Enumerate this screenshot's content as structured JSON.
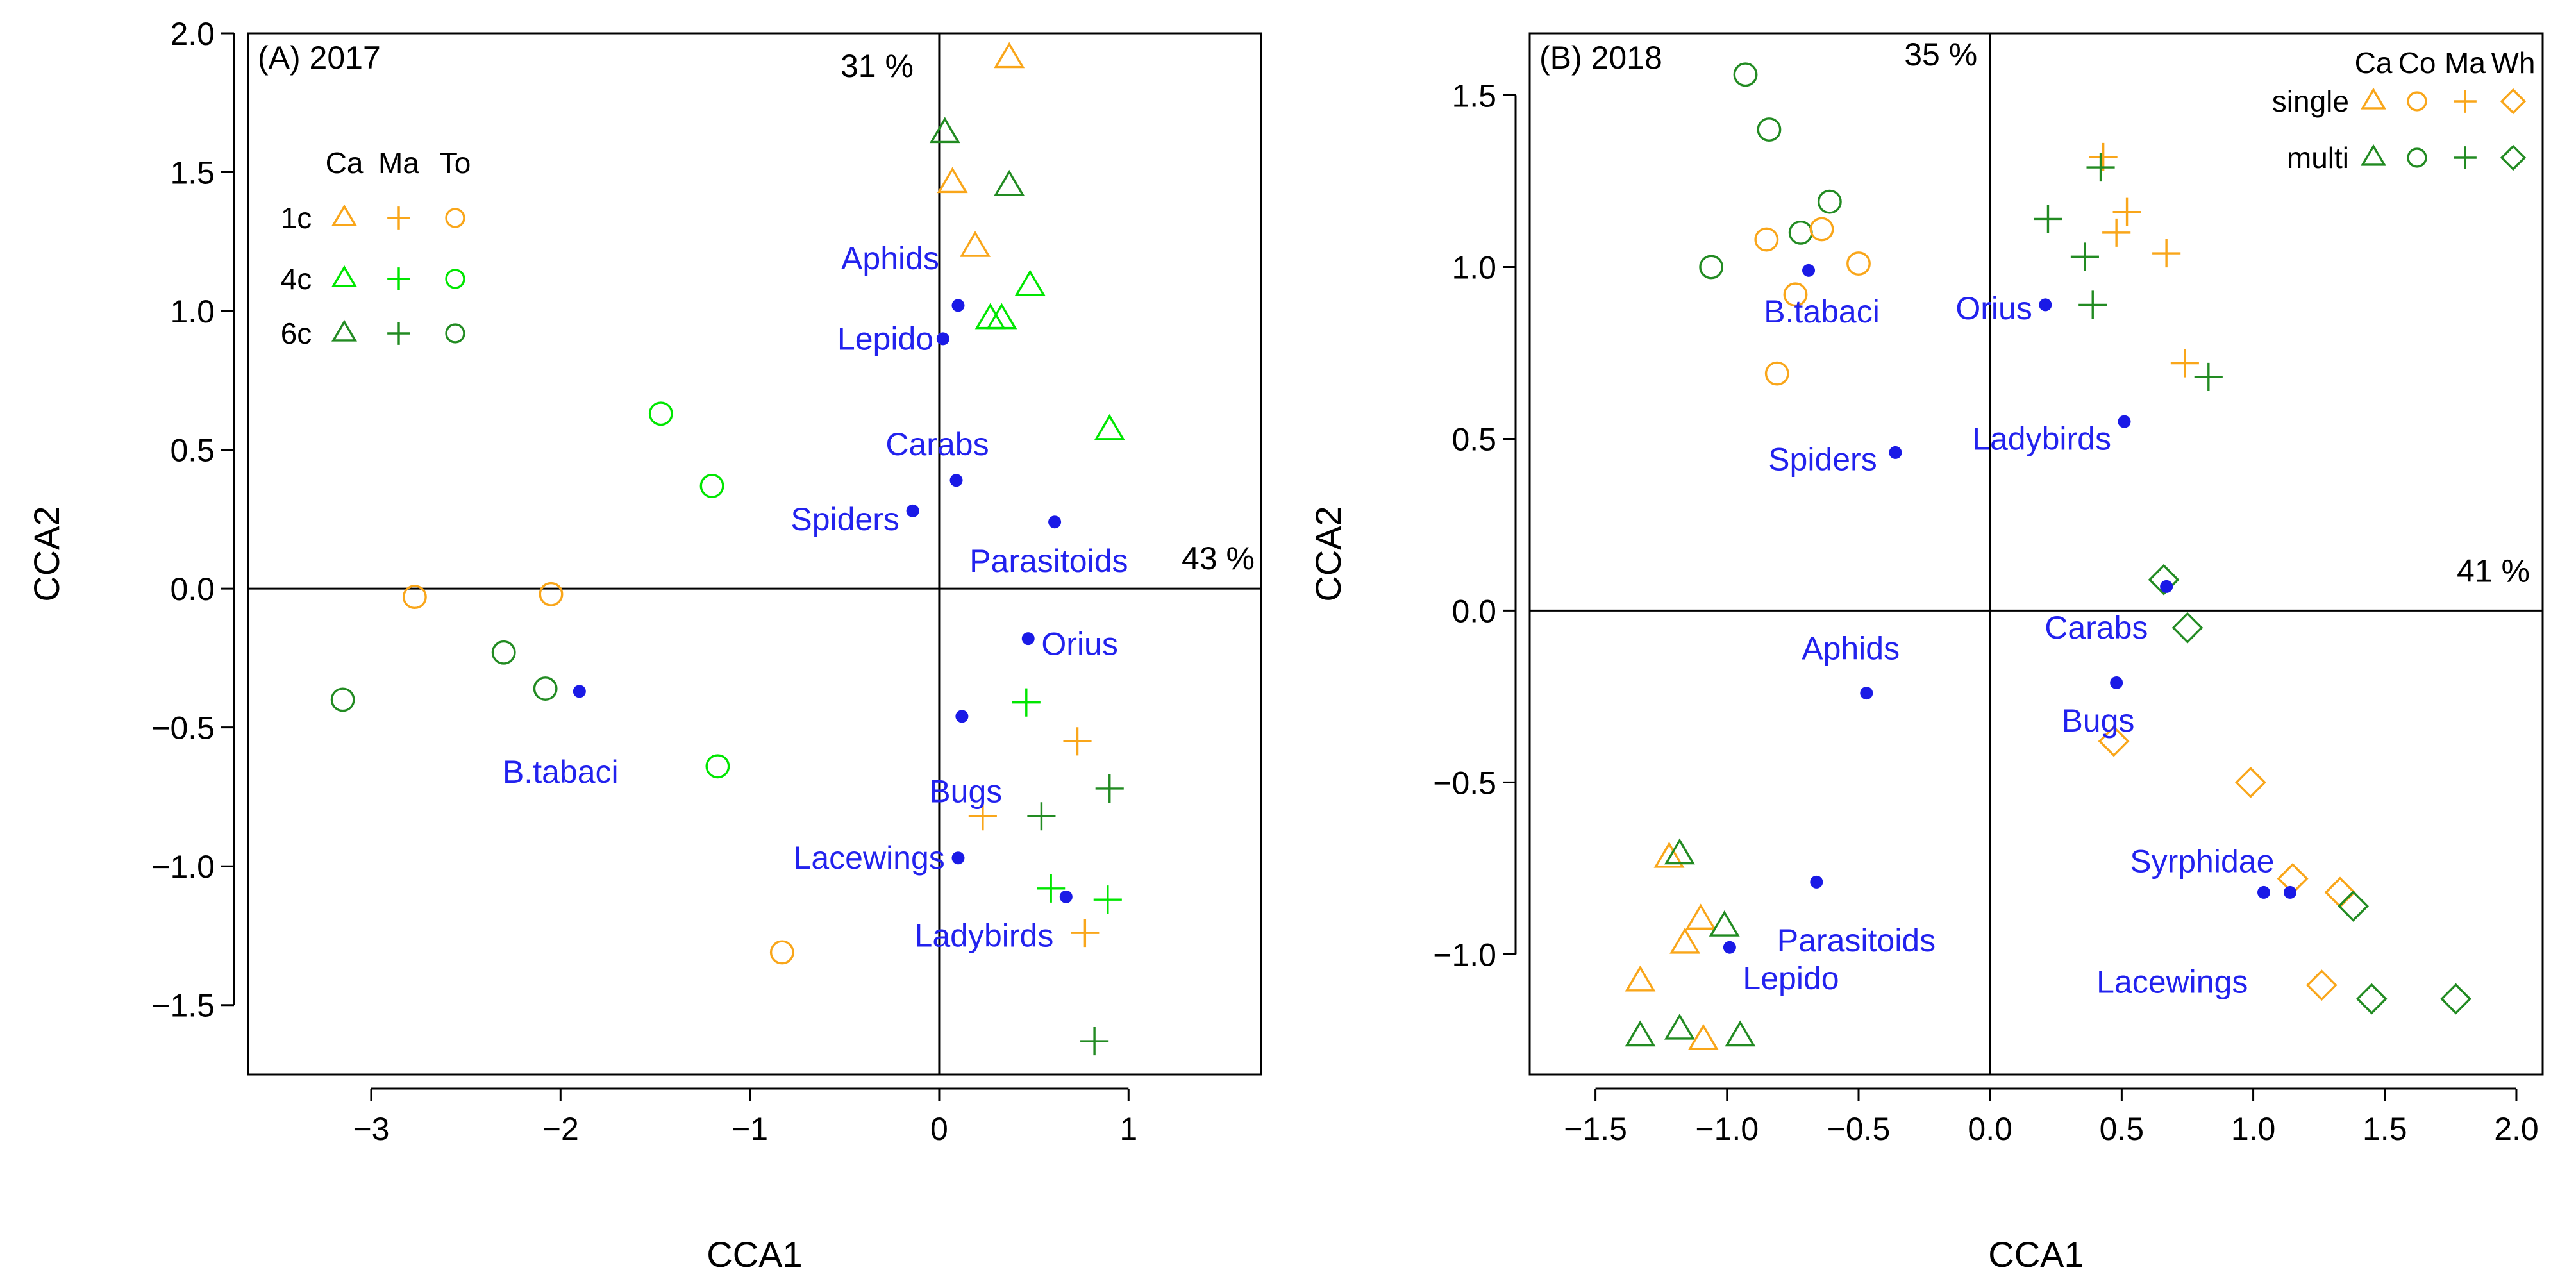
{
  "colors": {
    "orange": "#F9A61A",
    "light_green": "#00E600",
    "dark_green": "#228B22",
    "blue": "#1A1AE6",
    "axis": "#000000",
    "species_label": "#2222EE"
  },
  "chart_data": [
    {
      "type": "scatter",
      "panel_label": "(A) 2017",
      "xlabel": "CCA1",
      "ylabel": "CCA2",
      "xlim": [
        -3.65,
        1.7
      ],
      "ylim": [
        -1.75,
        2.0
      ],
      "xticks": [
        -3,
        -2,
        -1,
        0,
        1
      ],
      "xtick_labels": [
        "−3",
        "−2",
        "−1",
        "0",
        "1"
      ],
      "yticks": [
        -1.5,
        -1.0,
        -0.5,
        0.0,
        0.5,
        1.0,
        1.5,
        2.0
      ],
      "ytick_labels": [
        "−1.5",
        "−1.0",
        "−0.5",
        "0.0",
        "0.5",
        "1.0",
        "1.5",
        "2.0"
      ],
      "inertia_x": "43 %",
      "inertia_y": "31 %",
      "legend": {
        "columns": [
          "Ca",
          "Ma",
          "To"
        ],
        "rows": [
          "1c",
          "4c",
          "6c"
        ]
      },
      "samples": [
        {
          "group": "Ca",
          "level": "1c",
          "x": 0.37,
          "y": 1.91
        },
        {
          "group": "Ca",
          "level": "1c",
          "x": 0.07,
          "y": 1.46
        },
        {
          "group": "Ca",
          "level": "1c",
          "x": 0.19,
          "y": 1.23
        },
        {
          "group": "Ca",
          "level": "6c",
          "x": 0.03,
          "y": 1.64
        },
        {
          "group": "Ca",
          "level": "6c",
          "x": 0.37,
          "y": 1.45
        },
        {
          "group": "Ca",
          "level": "4c",
          "x": 0.48,
          "y": 1.09
        },
        {
          "group": "Ca",
          "level": "4c",
          "x": 0.27,
          "y": 0.97
        },
        {
          "group": "Ca",
          "level": "4c",
          "x": 0.33,
          "y": 0.97
        },
        {
          "group": "Ca",
          "level": "4c",
          "x": 0.9,
          "y": 0.57
        },
        {
          "group": "To",
          "level": "4c",
          "x": -1.47,
          "y": 0.63
        },
        {
          "group": "To",
          "level": "4c",
          "x": -1.2,
          "y": 0.37
        },
        {
          "group": "To",
          "level": "1c",
          "x": -2.77,
          "y": -0.03
        },
        {
          "group": "To",
          "level": "1c",
          "x": -2.05,
          "y": -0.02
        },
        {
          "group": "To",
          "level": "6c",
          "x": -2.3,
          "y": -0.23
        },
        {
          "group": "To",
          "level": "6c",
          "x": -2.08,
          "y": -0.36
        },
        {
          "group": "To",
          "level": "6c",
          "x": -3.15,
          "y": -0.4
        },
        {
          "group": "To",
          "level": "4c",
          "x": -1.17,
          "y": -0.64
        },
        {
          "group": "To",
          "level": "1c",
          "x": -0.83,
          "y": -1.31
        },
        {
          "group": "Ma",
          "level": "4c",
          "x": 0.46,
          "y": -0.41
        },
        {
          "group": "Ma",
          "level": "1c",
          "x": 0.73,
          "y": -0.55
        },
        {
          "group": "Ma",
          "level": "6c",
          "x": 0.9,
          "y": -0.72
        },
        {
          "group": "Ma",
          "level": "1c",
          "x": 0.23,
          "y": -0.82
        },
        {
          "group": "Ma",
          "level": "6c",
          "x": 0.54,
          "y": -0.82
        },
        {
          "group": "Ma",
          "level": "4c",
          "x": 0.59,
          "y": -1.08
        },
        {
          "group": "Ma",
          "level": "4c",
          "x": 0.89,
          "y": -1.12
        },
        {
          "group": "Ma",
          "level": "1c",
          "x": 0.77,
          "y": -1.24
        },
        {
          "group": "Ma",
          "level": "6c",
          "x": 0.82,
          "y": -1.63
        }
      ],
      "species": [
        {
          "name": "Aphids",
          "x": 0.1,
          "y": 1.02,
          "label_anchor": "end",
          "label_dx": -0.1,
          "label_dy": 0.17
        },
        {
          "name": "Lepido",
          "x": 0.02,
          "y": 0.9,
          "label_anchor": "end",
          "label_dx": -0.05,
          "label_dy": 0.0
        },
        {
          "name": "Carabs",
          "x": 0.09,
          "y": 0.39,
          "label_anchor": "middle",
          "label_dx": -0.1,
          "label_dy": 0.13
        },
        {
          "name": "Spiders",
          "x": -0.14,
          "y": 0.28,
          "label_anchor": "end",
          "label_dx": -0.07,
          "label_dy": -0.03
        },
        {
          "name": "Parasitoids",
          "x": 0.61,
          "y": 0.24,
          "label_anchor": "start",
          "label_dx": -0.45,
          "label_dy": -0.14
        },
        {
          "name": "Orius",
          "x": 0.47,
          "y": -0.18,
          "label_anchor": "start",
          "label_dx": 0.07,
          "label_dy": -0.02
        },
        {
          "name": "B.tabaci",
          "x": -1.9,
          "y": -0.37,
          "label_anchor": "middle",
          "label_dx": -0.1,
          "label_dy": -0.29
        },
        {
          "name": "Bugs",
          "x": 0.12,
          "y": -0.46,
          "label_anchor": "middle",
          "label_dx": 0.02,
          "label_dy": -0.27
        },
        {
          "name": "Lacewings",
          "x": 0.1,
          "y": -0.97,
          "label_anchor": "end",
          "label_dx": -0.07,
          "label_dy": 0.0
        },
        {
          "name": "Ladybirds",
          "x": 0.67,
          "y": -1.11,
          "label_anchor": "start",
          "label_dx": -0.8,
          "label_dy": -0.14
        }
      ]
    },
    {
      "type": "scatter",
      "panel_label": "(B) 2018",
      "xlabel": "CCA1",
      "ylabel": "CCA2",
      "xlim": [
        -1.75,
        2.1
      ],
      "ylim": [
        -1.35,
        1.68
      ],
      "xticks": [
        -1.5,
        -1.0,
        -0.5,
        0.0,
        0.5,
        1.0,
        1.5,
        2.0
      ],
      "xtick_labels": [
        "−1.5",
        "−1.0",
        "−0.5",
        "0.0",
        "0.5",
        "1.0",
        "1.5",
        "2.0"
      ],
      "yticks": [
        -1.0,
        -0.5,
        0.0,
        0.5,
        1.0,
        1.5
      ],
      "ytick_labels": [
        "−1.0",
        "−0.5",
        "0.0",
        "0.5",
        "1.0",
        "1.5"
      ],
      "inertia_x": "41 %",
      "inertia_y": "35 %",
      "legend": {
        "columns": [
          "Ca",
          "Co",
          "Ma",
          "Wh"
        ],
        "rows": [
          "single",
          "multi"
        ]
      },
      "samples": [
        {
          "group": "Co",
          "level": "multi",
          "x": -0.93,
          "y": 1.56
        },
        {
          "group": "Co",
          "level": "multi",
          "x": -0.84,
          "y": 1.4
        },
        {
          "group": "Co",
          "level": "multi",
          "x": -0.61,
          "y": 1.19
        },
        {
          "group": "Co",
          "level": "multi",
          "x": -0.72,
          "y": 1.1
        },
        {
          "group": "Co",
          "level": "single",
          "x": -0.64,
          "y": 1.11
        },
        {
          "group": "Co",
          "level": "single",
          "x": -0.85,
          "y": 1.08
        },
        {
          "group": "Co",
          "level": "single",
          "x": -0.5,
          "y": 1.01
        },
        {
          "group": "Co",
          "level": "multi",
          "x": -1.06,
          "y": 1.0
        },
        {
          "group": "Co",
          "level": "single",
          "x": -0.74,
          "y": 0.92
        },
        {
          "group": "Co",
          "level": "single",
          "x": -0.81,
          "y": 0.69
        },
        {
          "group": "Ma",
          "level": "single",
          "x": 0.43,
          "y": 1.32
        },
        {
          "group": "Ma",
          "level": "multi",
          "x": 0.42,
          "y": 1.29
        },
        {
          "group": "Ma",
          "level": "single",
          "x": 0.52,
          "y": 1.16
        },
        {
          "group": "Ma",
          "level": "multi",
          "x": 0.22,
          "y": 1.14
        },
        {
          "group": "Ma",
          "level": "single",
          "x": 0.48,
          "y": 1.1
        },
        {
          "group": "Ma",
          "level": "single",
          "x": 0.67,
          "y": 1.04
        },
        {
          "group": "Ma",
          "level": "multi",
          "x": 0.36,
          "y": 1.03
        },
        {
          "group": "Ma",
          "level": "multi",
          "x": 0.39,
          "y": 0.89
        },
        {
          "group": "Ma",
          "level": "single",
          "x": 0.74,
          "y": 0.72
        },
        {
          "group": "Ma",
          "level": "multi",
          "x": 0.83,
          "y": 0.68
        },
        {
          "group": "Wh",
          "level": "multi",
          "x": 0.66,
          "y": 0.09
        },
        {
          "group": "Wh",
          "level": "multi",
          "x": 0.75,
          "y": -0.05
        },
        {
          "group": "Wh",
          "level": "single",
          "x": 0.47,
          "y": -0.38
        },
        {
          "group": "Wh",
          "level": "single",
          "x": 0.99,
          "y": -0.5
        },
        {
          "group": "Wh",
          "level": "single",
          "x": 1.15,
          "y": -0.78
        },
        {
          "group": "Wh",
          "level": "single",
          "x": 1.33,
          "y": -0.82
        },
        {
          "group": "Wh",
          "level": "multi",
          "x": 1.38,
          "y": -0.86
        },
        {
          "group": "Wh",
          "level": "single",
          "x": 1.26,
          "y": -1.09
        },
        {
          "group": "Wh",
          "level": "multi",
          "x": 1.45,
          "y": -1.13
        },
        {
          "group": "Wh",
          "level": "multi",
          "x": 1.77,
          "y": -1.13
        },
        {
          "group": "Ca",
          "level": "single",
          "x": -1.22,
          "y": -0.72
        },
        {
          "group": "Ca",
          "level": "multi",
          "x": -1.18,
          "y": -0.71
        },
        {
          "group": "Ca",
          "level": "single",
          "x": -1.1,
          "y": -0.9
        },
        {
          "group": "Ca",
          "level": "multi",
          "x": -1.01,
          "y": -0.92
        },
        {
          "group": "Ca",
          "level": "single",
          "x": -1.16,
          "y": -0.97
        },
        {
          "group": "Ca",
          "level": "single",
          "x": -1.33,
          "y": -1.08
        },
        {
          "group": "Ca",
          "level": "multi",
          "x": -1.33,
          "y": -1.24
        },
        {
          "group": "Ca",
          "level": "multi",
          "x": -1.18,
          "y": -1.22
        },
        {
          "group": "Ca",
          "level": "single",
          "x": -1.09,
          "y": -1.25
        },
        {
          "group": "Ca",
          "level": "multi",
          "x": -0.95,
          "y": -1.24
        }
      ],
      "species": [
        {
          "name": "B.tabaci",
          "x": -0.69,
          "y": 0.99,
          "label_anchor": "middle",
          "label_dx": 0.05,
          "label_dy": -0.12
        },
        {
          "name": "Orius",
          "x": 0.21,
          "y": 0.89,
          "label_anchor": "end",
          "label_dx": -0.05,
          "label_dy": -0.01
        },
        {
          "name": "Spiders",
          "x": -0.36,
          "y": 0.46,
          "label_anchor": "end",
          "label_dx": -0.07,
          "label_dy": -0.02
        },
        {
          "name": "Ladybirds",
          "x": 0.51,
          "y": 0.55,
          "label_anchor": "end",
          "label_dx": -0.05,
          "label_dy": -0.05
        },
        {
          "name": "Carabs",
          "x": 0.67,
          "y": 0.07,
          "label_anchor": "end",
          "label_dx": -0.07,
          "label_dy": -0.12
        },
        {
          "name": "Aphids",
          "x": -0.47,
          "y": -0.24,
          "label_anchor": "middle",
          "label_dx": -0.06,
          "label_dy": 0.13
        },
        {
          "name": "Bugs",
          "x": 0.48,
          "y": -0.21,
          "label_anchor": "middle",
          "label_dx": -0.07,
          "label_dy": -0.11
        },
        {
          "name": "Syrphidae",
          "x": 1.14,
          "y": -0.82,
          "label_anchor": "end",
          "label_dx": -0.06,
          "label_dy": 0.09
        },
        {
          "name": "Lacewings",
          "x": 1.04,
          "y": -0.82,
          "label_anchor": "end",
          "label_dx": -0.06,
          "label_dy": -0.26
        },
        {
          "name": "Parasitoids",
          "x": -0.66,
          "y": -0.79,
          "label_anchor": "start",
          "label_dx": -0.15,
          "label_dy": -0.17
        },
        {
          "name": "Lepido",
          "x": -0.99,
          "y": -0.98,
          "label_anchor": "start",
          "label_dx": 0.05,
          "label_dy": -0.09
        }
      ]
    }
  ]
}
